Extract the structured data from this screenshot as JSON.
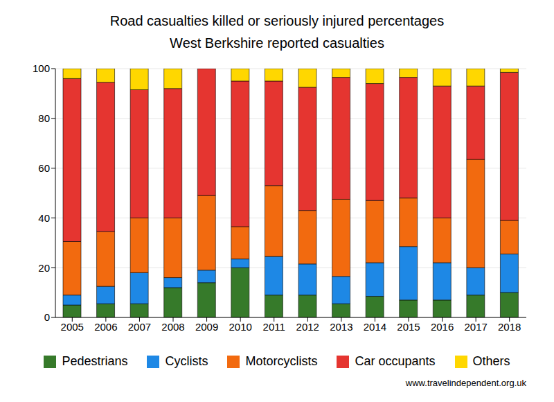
{
  "chart_data": {
    "type": "bar",
    "title": "Road casualties killed or seriously injured percentages",
    "subtitle": "West Berkshire reported casualties",
    "source": "www.travelindependent.org.uk",
    "categories": [
      "2005",
      "2006",
      "2007",
      "2008",
      "2009",
      "2010",
      "2011",
      "2012",
      "2013",
      "2014",
      "2015",
      "2016",
      "2017",
      "2018"
    ],
    "series": [
      {
        "name": "Pedestrians",
        "color": "#367a2a",
        "values": [
          5,
          5.5,
          5.5,
          12,
          14,
          20,
          9,
          9,
          5.5,
          8.5,
          7,
          7,
          9,
          10
        ]
      },
      {
        "name": "Cyclists",
        "color": "#1e88e5",
        "values": [
          4,
          7,
          12.5,
          4,
          5,
          3.5,
          15.5,
          12.5,
          11,
          13.5,
          21.5,
          15,
          11,
          15.5
        ]
      },
      {
        "name": "Motorcyclists",
        "color": "#f26a0f",
        "values": [
          21.5,
          22,
          22,
          24,
          30,
          13,
          28.5,
          21.5,
          31,
          25,
          19.5,
          18,
          43.5,
          13.5
        ]
      },
      {
        "name": "Car occupants",
        "color": "#e53530",
        "values": [
          65.5,
          60,
          51.5,
          52,
          51,
          58.5,
          42,
          49.5,
          49,
          47,
          48.5,
          53,
          29.5,
          59.5
        ]
      },
      {
        "name": "Others",
        "color": "#ffd700",
        "values": [
          4,
          5.5,
          8.5,
          8,
          0,
          5,
          5,
          7.5,
          3.5,
          6,
          3.5,
          7,
          7,
          1.5
        ]
      }
    ],
    "ylim": [
      0,
      100
    ],
    "yticks": [
      0,
      20,
      40,
      60,
      80,
      100
    ],
    "grid": true,
    "stacked": true,
    "legend": "bottom"
  }
}
